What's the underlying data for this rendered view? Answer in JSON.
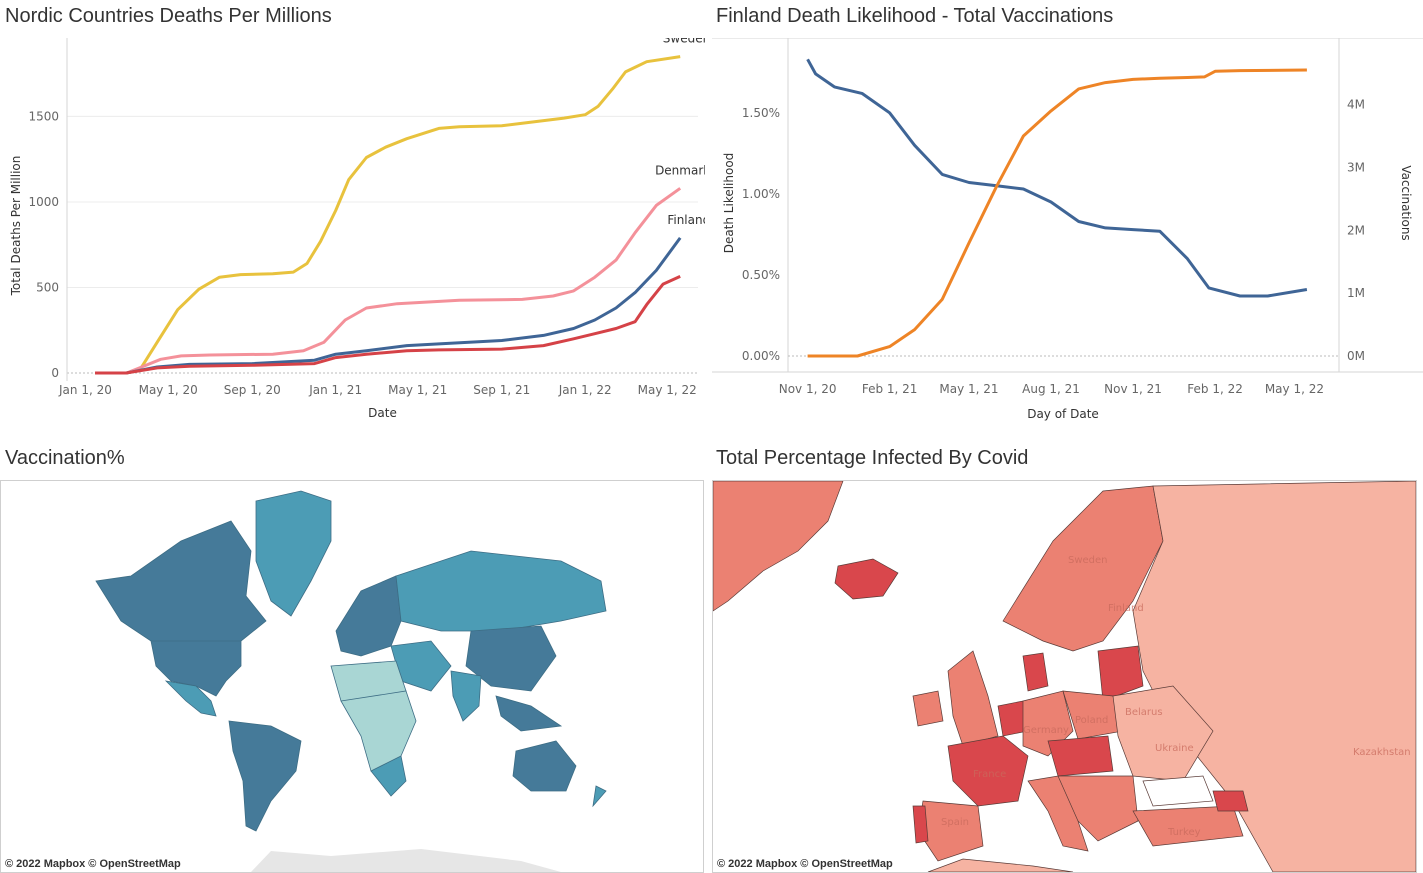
{
  "panels": {
    "nordic": {
      "title": "Nordic Countries Deaths Per Millions"
    },
    "finland": {
      "title": "Finland Death Likelihood  - Total Vaccinations"
    },
    "vacc_map": {
      "title": "Vaccination%",
      "credit": "© 2022 Mapbox  © OpenStreetMap"
    },
    "infected_map": {
      "title": "Total Percentage Infected By Covid",
      "credit": "© 2022 Mapbox  © OpenStreetMap",
      "labels": [
        "Sweden",
        "Finland",
        "Poland",
        "Ukraine",
        "France",
        "Spain",
        "Turkey",
        "Kazakhstan",
        "Germany",
        "Belarus"
      ]
    }
  },
  "colors": {
    "sweden": "#e8c23d",
    "denmark": "#f4919a",
    "finland": "#3f6596",
    "fourth": "#d54247",
    "death_likelihood": "#3f6596",
    "vaccinations": "#ee8426",
    "vacc_dark": "#457a99",
    "vacc_mid": "#4c9cb5",
    "vacc_light": "#a9d6d4",
    "inf_dark": "#d9474c",
    "inf_mid": "#eb8172",
    "inf_light": "#f6b3a2"
  },
  "chart_data": [
    {
      "type": "line",
      "xlabel": "Date",
      "ylabel": "Total Deaths Per Million",
      "ylim": [
        0,
        1900
      ],
      "y_ticks": [
        "0",
        "500",
        "1000",
        "1500"
      ],
      "x_ticks": [
        "Jan 1, 20",
        "May 1, 20",
        "Sep 1, 20",
        "Jan 1, 21",
        "May 1, 21",
        "Sep 1, 21",
        "Jan 1, 22",
        "May 1, 22"
      ],
      "grid": true,
      "series": [
        {
          "name": "Sweden",
          "color_key": "sweden",
          "points": [
            [
              "2020-01-15",
              0
            ],
            [
              "2020-03-01",
              0
            ],
            [
              "2020-03-20",
              15
            ],
            [
              "2020-04-15",
              180
            ],
            [
              "2020-05-15",
              370
            ],
            [
              "2020-06-15",
              490
            ],
            [
              "2020-07-15",
              560
            ],
            [
              "2020-08-15",
              575
            ],
            [
              "2020-10-01",
              580
            ],
            [
              "2020-10-31",
              590
            ],
            [
              "2020-11-20",
              640
            ],
            [
              "2020-12-10",
              770
            ],
            [
              "2021-01-01",
              950
            ],
            [
              "2021-01-20",
              1130
            ],
            [
              "2021-02-15",
              1260
            ],
            [
              "2021-03-15",
              1320
            ],
            [
              "2021-04-15",
              1370
            ],
            [
              "2021-06-01",
              1430
            ],
            [
              "2021-07-01",
              1440
            ],
            [
              "2021-09-01",
              1445
            ],
            [
              "2021-10-01",
              1460
            ],
            [
              "2021-12-01",
              1490
            ],
            [
              "2022-01-01",
              1510
            ],
            [
              "2022-01-20",
              1560
            ],
            [
              "2022-02-10",
              1660
            ],
            [
              "2022-03-01",
              1760
            ],
            [
              "2022-04-01",
              1820
            ],
            [
              "2022-05-20",
              1850
            ]
          ]
        },
        {
          "name": "Denmark",
          "color_key": "denmark",
          "points": [
            [
              "2020-01-15",
              0
            ],
            [
              "2020-03-01",
              0
            ],
            [
              "2020-03-20",
              30
            ],
            [
              "2020-04-20",
              80
            ],
            [
              "2020-05-20",
              100
            ],
            [
              "2020-07-01",
              105
            ],
            [
              "2020-10-01",
              110
            ],
            [
              "2020-11-15",
              130
            ],
            [
              "2020-12-15",
              180
            ],
            [
              "2021-01-15",
              310
            ],
            [
              "2021-02-15",
              380
            ],
            [
              "2021-04-01",
              405
            ],
            [
              "2021-07-01",
              425
            ],
            [
              "2021-10-01",
              430
            ],
            [
              "2021-11-15",
              450
            ],
            [
              "2021-12-15",
              480
            ],
            [
              "2022-01-15",
              560
            ],
            [
              "2022-02-15",
              660
            ],
            [
              "2022-03-15",
              820
            ],
            [
              "2022-04-15",
              980
            ],
            [
              "2022-05-20",
              1080
            ]
          ]
        },
        {
          "name": "Finland",
          "color_key": "finland",
          "points": [
            [
              "2020-01-15",
              0
            ],
            [
              "2020-03-01",
              0
            ],
            [
              "2020-04-15",
              35
            ],
            [
              "2020-06-01",
              50
            ],
            [
              "2020-09-01",
              55
            ],
            [
              "2020-12-01",
              75
            ],
            [
              "2021-01-01",
              110
            ],
            [
              "2021-02-15",
              130
            ],
            [
              "2021-04-15",
              160
            ],
            [
              "2021-06-01",
              170
            ],
            [
              "2021-09-01",
              190
            ],
            [
              "2021-11-01",
              220
            ],
            [
              "2021-12-15",
              260
            ],
            [
              "2022-01-15",
              310
            ],
            [
              "2022-02-15",
              380
            ],
            [
              "2022-03-15",
              470
            ],
            [
              "2022-04-15",
              600
            ],
            [
              "2022-05-20",
              790
            ]
          ]
        },
        {
          "name": "",
          "color_key": "fourth",
          "points": [
            [
              "2020-01-15",
              0
            ],
            [
              "2020-03-01",
              0
            ],
            [
              "2020-04-15",
              30
            ],
            [
              "2020-06-01",
              40
            ],
            [
              "2020-09-01",
              45
            ],
            [
              "2020-12-01",
              55
            ],
            [
              "2021-01-01",
              90
            ],
            [
              "2021-02-15",
              110
            ],
            [
              "2021-04-15",
              130
            ],
            [
              "2021-06-01",
              135
            ],
            [
              "2021-09-01",
              140
            ],
            [
              "2021-11-01",
              160
            ],
            [
              "2021-12-15",
              200
            ],
            [
              "2022-01-15",
              230
            ],
            [
              "2022-02-15",
              260
            ],
            [
              "2022-03-15",
              300
            ],
            [
              "2022-04-01",
              400
            ],
            [
              "2022-04-25",
              520
            ],
            [
              "2022-05-20",
              565
            ]
          ]
        }
      ],
      "line_labels": [
        "Sweden",
        "Denmark",
        "Finland"
      ]
    },
    {
      "type": "line",
      "xlabel": "Day of Date",
      "ylabel": "Death Likelihood",
      "y2label": "Vaccinations",
      "ylim": [
        0,
        1.9
      ],
      "y2lim": [
        0,
        4900000
      ],
      "y_ticks": [
        "0.00%",
        "0.50%",
        "1.00%",
        "1.50%"
      ],
      "y2_ticks": [
        "0M",
        "1M",
        "2M",
        "3M",
        "4M"
      ],
      "x_ticks": [
        "Nov 1, 20",
        "Feb 1, 21",
        "May 1, 21",
        "Aug 1, 21",
        "Nov 1, 21",
        "Feb 1, 22",
        "May 1, 22"
      ],
      "series": [
        {
          "name": "Death Likelihood",
          "axis": "left",
          "color_key": "death_likelihood",
          "points": [
            [
              "2020-11-01",
              1.83
            ],
            [
              "2020-11-10",
              1.74
            ],
            [
              "2020-12-01",
              1.66
            ],
            [
              "2021-01-01",
              1.62
            ],
            [
              "2021-02-01",
              1.5
            ],
            [
              "2021-03-01",
              1.3
            ],
            [
              "2021-04-01",
              1.12
            ],
            [
              "2021-05-01",
              1.07
            ],
            [
              "2021-06-01",
              1.05
            ],
            [
              "2021-07-01",
              1.03
            ],
            [
              "2021-08-01",
              0.95
            ],
            [
              "2021-09-01",
              0.83
            ],
            [
              "2021-10-01",
              0.79
            ],
            [
              "2021-11-01",
              0.78
            ],
            [
              "2021-12-01",
              0.77
            ],
            [
              "2022-01-01",
              0.6
            ],
            [
              "2022-01-25",
              0.42
            ],
            [
              "2022-03-01",
              0.37
            ],
            [
              "2022-04-01",
              0.37
            ],
            [
              "2022-05-15",
              0.41
            ]
          ]
        },
        {
          "name": "Vaccinations",
          "axis": "right",
          "color_key": "vaccinations",
          "points": [
            [
              "2020-11-01",
              0
            ],
            [
              "2020-12-27",
              0
            ],
            [
              "2021-02-01",
              150000
            ],
            [
              "2021-03-01",
              420000
            ],
            [
              "2021-04-01",
              900000
            ],
            [
              "2021-05-01",
              1800000
            ],
            [
              "2021-06-01",
              2700000
            ],
            [
              "2021-07-01",
              3500000
            ],
            [
              "2021-08-01",
              3900000
            ],
            [
              "2021-09-01",
              4250000
            ],
            [
              "2021-10-01",
              4350000
            ],
            [
              "2021-11-01",
              4400000
            ],
            [
              "2021-12-01",
              4420000
            ],
            [
              "2022-01-01",
              4430000
            ],
            [
              "2022-01-20",
              4440000
            ],
            [
              "2022-02-01",
              4530000
            ],
            [
              "2022-03-01",
              4540000
            ],
            [
              "2022-05-15",
              4550000
            ]
          ]
        }
      ]
    }
  ]
}
